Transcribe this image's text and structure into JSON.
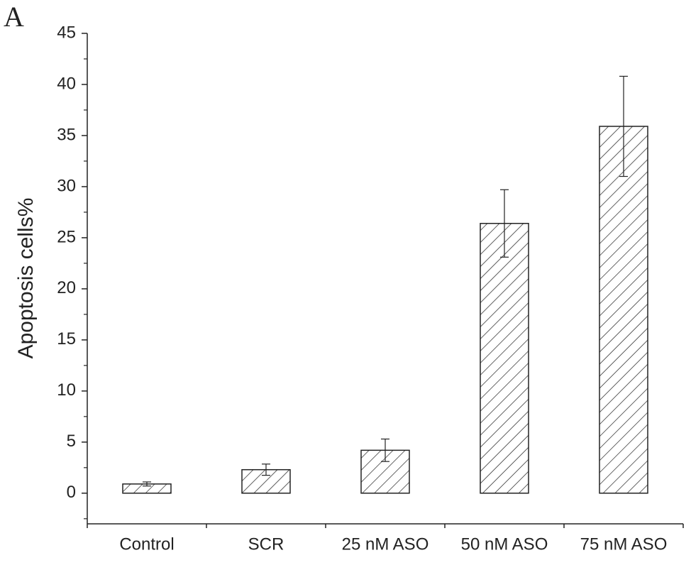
{
  "chart_data": {
    "type": "bar",
    "panel_label": "A",
    "ylabel": "Apoptosis cells%",
    "categories": [
      "Control",
      "SCR",
      "25 nM ASO",
      "50 nM ASO",
      "75 nM ASO"
    ],
    "values": [
      0.9,
      2.3,
      4.2,
      26.4,
      35.9
    ],
    "errors": [
      0.2,
      0.55,
      1.1,
      3.3,
      4.9
    ],
    "color": "#222222",
    "hatch": true,
    "ylim": [
      -3,
      45
    ],
    "yticks": [
      0,
      5,
      10,
      15,
      20,
      25,
      30,
      35,
      40,
      45
    ],
    "minor_yticks": [
      -2.5,
      2.5,
      7.5,
      12.5,
      17.5,
      22.5,
      27.5,
      32.5,
      37.5,
      42.5
    ],
    "grid": false
  }
}
